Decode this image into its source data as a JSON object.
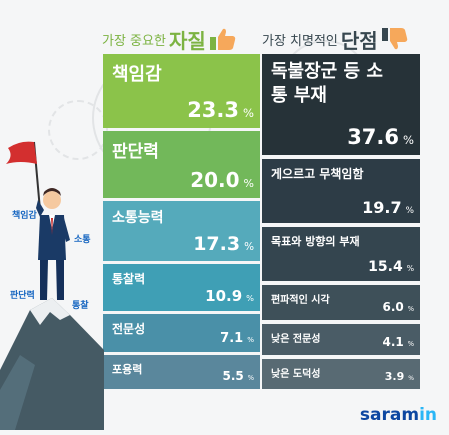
{
  "header_left": {
    "small": "가장 중요한",
    "big": "자질"
  },
  "header_right": {
    "small": "가장 치명적인",
    "big": "단점"
  },
  "chart_data": [
    {
      "type": "bar",
      "categories": [
        "책임감",
        "판단력",
        "소통능력",
        "통찰력",
        "전문성",
        "포용력"
      ],
      "values": [
        23.3,
        20.0,
        17.3,
        10.9,
        7.1,
        5.5
      ],
      "value_labels": [
        "23.3",
        "20.0",
        "17.3",
        "10.9",
        "7.1",
        "5.5"
      ],
      "unit": "%",
      "colors": [
        "#8bc34a",
        "#72b85a",
        "#55aabb",
        "#3f9fb5",
        "#4a90a8",
        "#5a879c"
      ]
    },
    {
      "type": "bar",
      "categories": [
        "독불장군 등 소통 부재",
        "게으르고 무책임함",
        "목표와 방향의 부재",
        "편파적인 시각",
        "낮은 전문성",
        "낮은 도덕성"
      ],
      "values": [
        37.6,
        19.7,
        15.4,
        6.0,
        4.1,
        3.9
      ],
      "value_labels": [
        "37.6",
        "19.7",
        "15.4",
        "6.0",
        "4.1",
        "3.9"
      ],
      "unit": "%",
      "colors": [
        "#263238",
        "#2d3c46",
        "#34454f",
        "#3e5059",
        "#4a5c66",
        "#586a73"
      ]
    }
  ],
  "keywords": {
    "k1": "책임감",
    "k2": "소통",
    "k3": "판단력",
    "k4": "통찰"
  },
  "logo": {
    "brand": "saram",
    "suffix": "in"
  },
  "colors": {
    "left_header": "#7cb342",
    "right_header": "#37474f",
    "flag": "#d32f2f",
    "mountain": "#455a64"
  },
  "icons": {
    "like": "thumbs-up-icon",
    "dislike": "thumbs-down-icon",
    "figure": "businessman-holding-flag"
  }
}
